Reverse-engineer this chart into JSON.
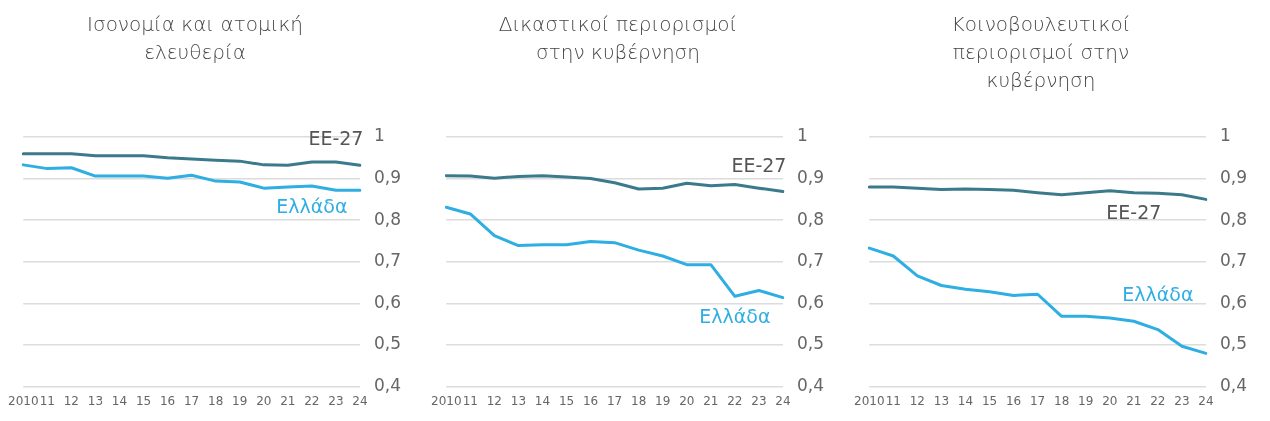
{
  "chart_data": [
    {
      "type": "line",
      "title": "Ισονομία και ατομική ελευθερία",
      "categories": [
        "2010",
        "11",
        "12",
        "13",
        "14",
        "15",
        "16",
        "17",
        "18",
        "19",
        "20",
        "21",
        "22",
        "23",
        "24"
      ],
      "series": [
        {
          "name": "ΕΕ-27",
          "color": "#3b7a8c",
          "values": [
            0.96,
            0.96,
            0.96,
            0.955,
            0.955,
            0.955,
            0.95,
            0.947,
            0.944,
            0.942,
            0.933,
            0.932,
            0.94,
            0.94,
            0.932
          ]
        },
        {
          "name": "Ελλάδα",
          "color": "#2eaee3",
          "values": [
            0.933,
            0.924,
            0.926,
            0.906,
            0.906,
            0.906,
            0.901,
            0.908,
            0.894,
            0.892,
            0.877,
            0.88,
            0.882,
            0.872,
            0.872
          ]
        }
      ],
      "ylim": [
        0.4,
        1
      ],
      "yticks": [
        {
          "value": 0.4,
          "label": "0,4"
        },
        {
          "value": 0.5,
          "label": "0,5"
        },
        {
          "value": 0.6,
          "label": "0,6"
        },
        {
          "value": 0.7,
          "label": "0,7"
        },
        {
          "value": 0.8,
          "label": "0,8"
        },
        {
          "value": 0.9,
          "label": "0,9"
        },
        {
          "value": 1,
          "label": "1"
        }
      ],
      "grid": "y",
      "legend": false,
      "marker": "none"
    },
    {
      "type": "line",
      "title": "Δικαστικοί περιορισμοί στην κυβέρνηση",
      "categories": [
        "2010",
        "11",
        "12",
        "13",
        "14",
        "15",
        "16",
        "17",
        "18",
        "19",
        "20",
        "21",
        "22",
        "23",
        "24"
      ],
      "series": [
        {
          "name": "ΕΕ-27",
          "color": "#3b7a8c",
          "values": [
            0.907,
            0.906,
            0.901,
            0.905,
            0.907,
            0.904,
            0.9,
            0.89,
            0.875,
            0.877,
            0.889,
            0.883,
            0.886,
            0.877,
            0.869
          ]
        },
        {
          "name": "Ελλάδα",
          "color": "#2eaee3",
          "values": [
            0.831,
            0.815,
            0.763,
            0.739,
            0.741,
            0.741,
            0.749,
            0.746,
            0.728,
            0.714,
            0.693,
            0.693,
            0.617,
            0.631,
            0.614
          ]
        }
      ],
      "ylim": [
        0.4,
        1
      ],
      "yticks": [
        {
          "value": 0.4,
          "label": "0,4"
        },
        {
          "value": 0.5,
          "label": "0,5"
        },
        {
          "value": 0.6,
          "label": "0,6"
        },
        {
          "value": 0.7,
          "label": "0,7"
        },
        {
          "value": 0.8,
          "label": "0,8"
        },
        {
          "value": 0.9,
          "label": "0,9"
        },
        {
          "value": 1,
          "label": "1"
        }
      ],
      "grid": "y",
      "legend": false,
      "marker": "none"
    },
    {
      "type": "line",
      "title": "Κοινοβουλευτικοί περιορισμοί στην κυβέρνηση",
      "categories": [
        "2010",
        "11",
        "12",
        "13",
        "14",
        "15",
        "16",
        "17",
        "18",
        "19",
        "20",
        "21",
        "22",
        "23",
        "24"
      ],
      "series": [
        {
          "name": "ΕΕ-27",
          "color": "#3b7a8c",
          "values": [
            0.88,
            0.88,
            0.877,
            0.874,
            0.875,
            0.874,
            0.872,
            0.866,
            0.861,
            0.866,
            0.871,
            0.866,
            0.865,
            0.861,
            0.85
          ]
        },
        {
          "name": "Ελλάδα",
          "color": "#2eaee3",
          "values": [
            0.733,
            0.714,
            0.666,
            0.643,
            0.634,
            0.628,
            0.619,
            0.622,
            0.569,
            0.569,
            0.565,
            0.557,
            0.537,
            0.497,
            0.48
          ]
        }
      ],
      "ylim": [
        0.4,
        1
      ],
      "yticks": [
        {
          "value": 0.4,
          "label": "0,4"
        },
        {
          "value": 0.5,
          "label": "0,5"
        },
        {
          "value": 0.6,
          "label": "0,6"
        },
        {
          "value": 0.7,
          "label": "0,7"
        },
        {
          "value": 0.8,
          "label": "0,8"
        },
        {
          "value": 0.9,
          "label": "0,9"
        },
        {
          "value": 1,
          "label": "1"
        }
      ],
      "grid": "y",
      "legend": false,
      "marker": "none"
    }
  ]
}
